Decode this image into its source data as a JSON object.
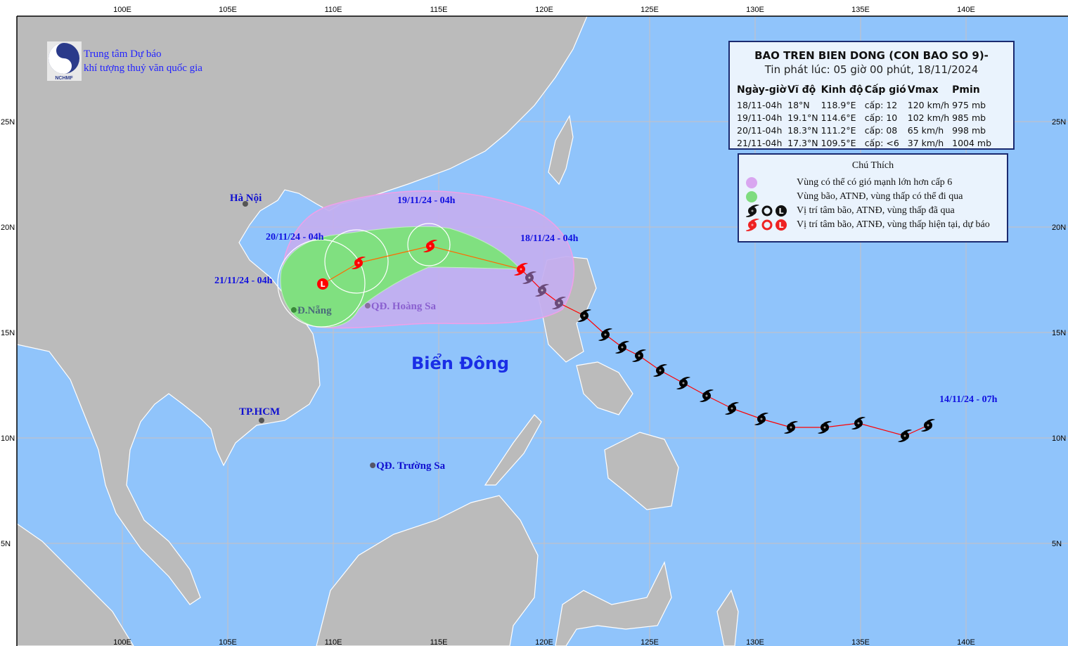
{
  "header": {
    "agency_line1": "Trung tâm Dự báo",
    "agency_line2": "khí tượng thuỷ văn quốc gia",
    "logo_text": "NCHMF"
  },
  "bulletin": {
    "title": "BAO TREN BIEN DONG (CON BAO SO 9)-",
    "issued": "Tin phát lúc: 05 giờ 00 phút, 18/11/2024",
    "columns": [
      "Ngày-giờ",
      "Vĩ độ",
      "Kinh độ",
      "Cấp gió",
      "Vmax",
      "Pmin"
    ],
    "rows": [
      [
        "18/11-04h",
        "18°N",
        "118.9°E",
        "cấp: 12",
        "120 km/h",
        "975 mb"
      ],
      [
        "19/11-04h",
        "19.1°N",
        "114.6°E",
        "cấp: 10",
        "102 km/h",
        "985 mb"
      ],
      [
        "20/11-04h",
        "18.3°N",
        "111.2°E",
        "cấp: 08",
        "65 km/h",
        "998 mb"
      ],
      [
        "21/11-04h",
        "17.3°N",
        "109.5°E",
        "cấp: <6",
        "37 km/h",
        "1004 mb"
      ]
    ]
  },
  "legend": {
    "title": "Chú Thích",
    "items": [
      {
        "label": "Vùng có thể có gió mạnh lớn hơn cấp 6",
        "color": "#d9a6f0"
      },
      {
        "label": "Vùng bão, ATNĐ, vùng thấp có thể đi qua",
        "color": "#7fdc7f"
      },
      {
        "label": "Vị trí tâm bão, ATNĐ, vùng thấp đã qua",
        "color": "#111111"
      },
      {
        "label": "Vị trí tâm bão, ATNĐ, vùng thấp hiện tại, dự báo",
        "color": "#ee2222"
      }
    ]
  },
  "map": {
    "lon_ticks": [
      "100E",
      "105E",
      "110E",
      "115E",
      "120E",
      "125E",
      "130E",
      "135E",
      "140E"
    ],
    "lat_ticks": [
      "25N",
      "20N",
      "15N",
      "10N",
      "5N"
    ],
    "colors": {
      "sea": "#90c4fb",
      "land": "#bbbbbb",
      "grid": "#c8c0c0",
      "wind_zone": "#c4aef0",
      "storm_zone": "#80e080",
      "current": "#ff0000",
      "past": "#000000"
    },
    "sea_label": "Biển Đông",
    "places": [
      {
        "name": "Hà Nội",
        "lon": 105.83,
        "lat": 21.1
      },
      {
        "name": "Đ.Nẵng",
        "lon": 108.13,
        "lat": 16.07
      },
      {
        "name": "QĐ. Hoàng Sa",
        "lon": 111.63,
        "lat": 16.27
      },
      {
        "name": "TP.HCM",
        "lon": 106.6,
        "lat": 10.83
      },
      {
        "name": "QĐ. Trường Sa",
        "lon": 111.87,
        "lat": 8.7
      }
    ],
    "date_labels": [
      "18/11/24 - 04h",
      "19/11/24 - 04h",
      "20/11/24 - 04h",
      "21/11/24 - 04h",
      "14/11/24 - 07h"
    ],
    "past_track": [
      [
        138.2,
        10.6
      ],
      [
        137.1,
        10.1
      ],
      [
        134.9,
        10.7
      ],
      [
        133.3,
        10.5
      ],
      [
        131.7,
        10.5
      ],
      [
        130.3,
        10.9
      ],
      [
        128.9,
        11.4
      ],
      [
        127.7,
        12.0
      ],
      [
        126.6,
        12.6
      ],
      [
        125.5,
        13.2
      ],
      [
        124.5,
        13.9
      ],
      [
        123.7,
        14.3
      ],
      [
        122.9,
        14.9
      ],
      [
        121.9,
        15.8
      ],
      [
        120.7,
        16.4
      ],
      [
        119.9,
        17.0
      ],
      [
        119.3,
        17.6
      ]
    ],
    "forecast_track": [
      {
        "lon": 118.9,
        "lat": 18.0,
        "type": "storm"
      },
      {
        "lon": 114.6,
        "lat": 19.1,
        "type": "storm"
      },
      {
        "lon": 111.2,
        "lat": 18.3,
        "type": "storm"
      },
      {
        "lon": 109.5,
        "lat": 17.3,
        "type": "low",
        "symbol": "L"
      }
    ]
  }
}
